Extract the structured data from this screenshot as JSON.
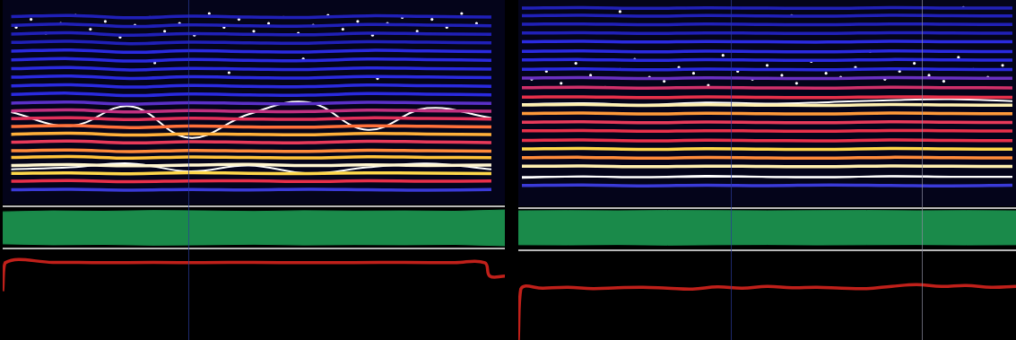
{
  "chart_data": [
    {
      "type": "line",
      "tick_labels": false,
      "grid": false,
      "xlim": [
        0,
        100
      ],
      "ylim": [
        0,
        100
      ],
      "x": [
        1,
        13,
        25,
        37,
        49,
        61,
        73,
        85,
        98
      ],
      "series": [
        {
          "color": "#3a3ad8",
          "values": [
            5.7,
            5.9,
            5.5,
            5.8,
            5.6,
            5.9,
            5.7,
            5.5,
            5.8
          ]
        },
        {
          "color": "#e8304a",
          "values": [
            10,
            10.3,
            9.8,
            10.1,
            10.2,
            9.9,
            10.2,
            10,
            10.1
          ]
        },
        {
          "color": "#ffd84a",
          "values": [
            14,
            14.2,
            13.8,
            14.3,
            14,
            13.9,
            14.2,
            14.1,
            13.9
          ]
        },
        {
          "color": "#fff6d0",
          "values": [
            18,
            18.4,
            17.8,
            18.2,
            18.5,
            17.9,
            18.3,
            18,
            18.2
          ]
        },
        {
          "color": "#ffc23a",
          "values": [
            22,
            22.5,
            21.7,
            22.3,
            22,
            21.8,
            22.4,
            22.1,
            21.9
          ]
        },
        {
          "color": "#ff8a3a",
          "values": [
            25.4,
            25.8,
            25,
            25.6,
            25.3,
            25.1,
            25.7,
            25.4,
            25.2
          ]
        },
        {
          "color": "#e83a5a",
          "values": [
            29.8,
            30.3,
            29.4,
            30,
            29.7,
            29.5,
            30.2,
            29.9,
            29.6
          ]
        },
        {
          "color": "#ffb03a",
          "values": [
            33.8,
            34.3,
            33.4,
            34,
            33.7,
            33.5,
            34.2,
            33.9,
            33.6
          ]
        },
        {
          "color": "#ff703a",
          "values": [
            37.7,
            38.2,
            37.2,
            37.9,
            37.5,
            37.4,
            38.1,
            37.8,
            37.5
          ]
        },
        {
          "color": "#e0305a",
          "values": [
            41.7,
            42.2,
            41.2,
            41.9,
            41.5,
            41.4,
            42.1,
            41.8,
            41.5
          ]
        },
        {
          "color": "#c03080",
          "values": [
            45.6,
            46.1,
            45.1,
            45.8,
            45.4,
            45.3,
            46,
            45.7,
            45.4
          ]
        },
        {
          "color": "#5a30c8",
          "values": [
            49.6,
            50.1,
            49.1,
            49.8,
            49.4,
            49.3,
            50,
            49.7,
            49.4
          ]
        },
        {
          "color": "#2a2ae0",
          "values": [
            54,
            54.6,
            53.4,
            54.2,
            53.8,
            53.6,
            54.4,
            54.1,
            53.8
          ]
        },
        {
          "color": "#2a2ae0",
          "values": [
            58.3,
            58.9,
            57.7,
            58.5,
            58.1,
            57.9,
            58.7,
            58.4,
            58.1
          ]
        },
        {
          "color": "#2a2ae0",
          "values": [
            62.7,
            63.3,
            62.1,
            62.9,
            62.5,
            62.3,
            63.1,
            62.8,
            62.5
          ]
        },
        {
          "color": "#2a2ae0",
          "values": [
            67,
            67.6,
            66.4,
            67.2,
            66.8,
            66.6,
            67.4,
            67.1,
            66.8
          ]
        },
        {
          "color": "#2a2ae0",
          "values": [
            71.5,
            72.1,
            70.9,
            71.7,
            71.3,
            71.1,
            71.9,
            71.6,
            71.3
          ]
        },
        {
          "color": "#2a2ae0",
          "values": [
            75.9,
            76.5,
            75.3,
            76.1,
            75.7,
            75.5,
            76.3,
            76,
            75.7
          ]
        },
        {
          "color": "#2020b8",
          "values": [
            80.3,
            80.9,
            79.7,
            80.5,
            80.1,
            79.9,
            80.7,
            80.4,
            80.1
          ]
        },
        {
          "color": "#2020b8",
          "values": [
            84.6,
            85.2,
            84,
            84.8,
            84.4,
            84.2,
            85,
            84.7,
            84.4
          ]
        },
        {
          "color": "#2020b8",
          "values": [
            89,
            89.6,
            88.4,
            89.2,
            88.8,
            88.6,
            89.4,
            89.1,
            88.8
          ]
        },
        {
          "color": "#2020b8",
          "values": [
            93.4,
            94,
            92.8,
            93.6,
            93.2,
            93,
            93.8,
            93.5,
            93.2
          ]
        },
        {
          "color": "#ffffff",
          "values": [
            16,
            17,
            19,
            15,
            18,
            14,
            17,
            19,
            16
          ]
        },
        {
          "color": "#ffffff",
          "values": [
            45,
            38,
            48,
            32,
            44,
            50,
            36,
            47,
            42
          ]
        },
        {
          "type": "scatter",
          "marker": "circle",
          "color": "#ffffff",
          "x": [
            2,
            5,
            8,
            11,
            14,
            17,
            20,
            23,
            26,
            29,
            32,
            35,
            38,
            41,
            44,
            47,
            50,
            53,
            56,
            59,
            62,
            65,
            68,
            71,
            74,
            77,
            80,
            83,
            86,
            89,
            92,
            95,
            30,
            45,
            60,
            75
          ],
          "values": [
            88,
            92,
            85,
            90,
            94,
            87,
            91,
            83,
            89,
            93,
            86,
            90,
            84,
            95,
            88,
            92,
            86,
            90,
            93,
            85,
            89,
            94,
            87,
            91,
            84,
            90,
            93,
            86,
            92,
            88,
            95,
            90,
            70,
            65,
            72,
            62
          ]
        }
      ]
    },
    {
      "type": "area",
      "tick_labels": false,
      "grid": false,
      "xlim": [
        0,
        100
      ],
      "ylim": [
        -1,
        1
      ],
      "x": [
        0,
        10,
        20,
        30,
        40,
        50,
        60,
        70,
        80,
        90,
        100
      ],
      "series": [
        {
          "color": "#1a8a4a",
          "values": [
            0.85,
            0.9,
            0.88,
            0.92,
            0.9,
            0.87,
            0.91,
            0.89,
            0.9,
            0.88,
            0.95
          ]
        },
        {
          "color": "#1a8a4a",
          "values": [
            -0.85,
            -0.9,
            -0.88,
            -0.92,
            -0.9,
            -0.87,
            -0.91,
            -0.89,
            -0.9,
            -0.88,
            -0.95
          ]
        }
      ]
    },
    {
      "type": "line",
      "tick_labels": false,
      "grid": false,
      "xlim": [
        0,
        100
      ],
      "ylim": [
        0,
        100
      ],
      "x": [
        0,
        0.5,
        10,
        20,
        30,
        40,
        50,
        60,
        70,
        80,
        90,
        96,
        97,
        100
      ],
      "series": [
        {
          "color": "#c0201a",
          "values": [
            55,
            87,
            87.5,
            87,
            87.3,
            87.1,
            87.4,
            87,
            87.2,
            87.3,
            87.1,
            87,
            72,
            72
          ]
        }
      ]
    },
    {
      "type": "line",
      "tick_labels": false,
      "grid": false,
      "xlim": [
        0,
        100
      ],
      "ylim": [
        0,
        100
      ],
      "x": [
        0,
        12.5,
        25,
        37.5,
        50,
        62.5,
        75,
        87.5,
        100
      ],
      "series": [
        {
          "color": "#3a3ad8",
          "values": [
            8.7,
            8.9,
            8.5,
            8.8,
            8.6,
            8.9,
            8.7,
            8.5,
            8.8
          ]
        },
        {
          "color": "#ffffff",
          "values": [
            13,
            13.2,
            12.8,
            13.1,
            13,
            12.9,
            13.2,
            13,
            13.1
          ]
        },
        {
          "color": "#fff0b0",
          "values": [
            18.3,
            18.5,
            18.1,
            18.4,
            18.2,
            18.1,
            18.5,
            18.3,
            18.2
          ]
        },
        {
          "color": "#ff8a3a",
          "values": [
            22.6,
            22.8,
            22.4,
            22.7,
            22.5,
            22.4,
            22.8,
            22.6,
            22.5
          ]
        },
        {
          "color": "#ffd84a",
          "values": [
            27,
            27.2,
            26.8,
            27.1,
            26.9,
            26.8,
            27.2,
            27,
            26.9
          ]
        },
        {
          "color": "#e8304a",
          "values": [
            31.3,
            31.5,
            31.1,
            31.4,
            31.2,
            31.1,
            31.5,
            31.3,
            31.2
          ]
        },
        {
          "color": "#e8304a",
          "values": [
            36.1,
            36.3,
            35.9,
            36.2,
            36,
            35.9,
            36.3,
            36.1,
            36
          ]
        },
        {
          "color": "#e83a5a",
          "values": [
            40.4,
            40.6,
            40.2,
            40.5,
            40.3,
            40.2,
            40.6,
            40.4,
            40.3
          ]
        },
        {
          "color": "#ff9a3a",
          "values": [
            44.8,
            45,
            44.6,
            44.9,
            44.7,
            44.6,
            45,
            44.8,
            44.7
          ]
        },
        {
          "color": "#fff0b0",
          "values": [
            49.1,
            49.3,
            48.9,
            49.2,
            49,
            48.9,
            49.3,
            49.1,
            49
          ]
        },
        {
          "color": "#e8304a",
          "values": [
            53,
            53.2,
            52.8,
            53.1,
            52.9,
            52.8,
            53.2,
            53,
            52.9
          ]
        },
        {
          "color": "#d0306a",
          "values": [
            57.8,
            58,
            57.6,
            57.9,
            57.7,
            57.6,
            58,
            57.8,
            57.7
          ]
        },
        {
          "color": "#6a30c0",
          "values": [
            62.6,
            62.8,
            62.4,
            62.7,
            62.5,
            62.4,
            62.8,
            62.6,
            62.5
          ]
        },
        {
          "color": "#2a2ae0",
          "values": [
            67,
            67.2,
            66.8,
            67.1,
            66.9,
            66.8,
            67.2,
            67,
            66.9
          ]
        },
        {
          "color": "#2a2ae0",
          "values": [
            71.7,
            71.9,
            71.5,
            71.8,
            71.6,
            71.5,
            71.9,
            71.7,
            71.6
          ]
        },
        {
          "color": "#2a2ae0",
          "values": [
            76,
            76.2,
            75.8,
            76.1,
            75.9,
            75.8,
            76.2,
            76,
            75.9
          ]
        },
        {
          "color": "#2a2ae0",
          "values": [
            80.9,
            81.1,
            80.7,
            81,
            80.8,
            80.7,
            81.1,
            80.9,
            80.8
          ]
        },
        {
          "color": "#2020b8",
          "values": [
            85.2,
            85.4,
            85,
            85.3,
            85.1,
            85,
            85.4,
            85.2,
            85.1
          ]
        },
        {
          "color": "#2020b8",
          "values": [
            89.6,
            89.8,
            89.4,
            89.7,
            89.5,
            89.4,
            89.8,
            89.6,
            89.5
          ]
        },
        {
          "color": "#2020b8",
          "values": [
            93.9,
            94.1,
            93.7,
            94,
            93.8,
            93.7,
            94.1,
            93.9,
            93.8
          ]
        },
        {
          "color": "#2020b8",
          "values": [
            97.8,
            98,
            97.6,
            97.9,
            97.7,
            97.6,
            98,
            97.8,
            97.7
          ]
        },
        {
          "color": "#ffffff",
          "values": [
            12.5,
            13.2,
            12.8,
            13.5,
            13,
            12.7,
            13.4,
            13.1,
            12.9
          ]
        },
        {
          "color": "#ffffff",
          "values": [
            49.5,
            50,
            49.2,
            50.3,
            49.8,
            50.5,
            51.5,
            52,
            51
          ]
        },
        {
          "type": "scatter",
          "marker": "circle",
          "color": "#ffffff",
          "x": [
            2,
            5,
            8,
            11,
            14,
            17,
            20,
            23,
            26,
            29,
            32,
            35,
            38,
            41,
            44,
            47,
            50,
            53,
            56,
            59,
            62,
            65,
            68,
            71,
            74,
            77,
            80,
            83,
            86,
            89,
            92,
            95,
            98,
            20,
            55,
            90
          ],
          "values": [
            62,
            66,
            60,
            70,
            64,
            58,
            67,
            72,
            63,
            61,
            68,
            65,
            59,
            74,
            66,
            62,
            69,
            64,
            60,
            71,
            65,
            63,
            68,
            76,
            62,
            66,
            70,
            64,
            61,
            73,
            67,
            63,
            69,
            96,
            94,
            98
          ]
        }
      ]
    },
    {
      "type": "area",
      "tick_labels": false,
      "grid": false,
      "xlim": [
        0,
        100
      ],
      "ylim": [
        -1,
        1
      ],
      "x": [
        0,
        10,
        20,
        30,
        40,
        50,
        60,
        70,
        80,
        90,
        100
      ],
      "series": [
        {
          "color": "#1a8a4a",
          "values": [
            0.95,
            0.96,
            0.95,
            0.97,
            0.96,
            0.95,
            0.96,
            0.97,
            0.95,
            0.96,
            0.95
          ]
        },
        {
          "color": "#1a8a4a",
          "values": [
            -0.85,
            -0.86,
            -0.84,
            -0.87,
            -0.85,
            -0.84,
            -0.86,
            -0.85,
            -0.84,
            -0.86,
            -0.85
          ]
        }
      ]
    },
    {
      "type": "line",
      "tick_labels": false,
      "grid": false,
      "xlim": [
        0,
        100
      ],
      "ylim": [
        0,
        100
      ],
      "x": [
        0,
        0.5,
        5,
        10,
        15,
        20,
        25,
        30,
        35,
        40,
        45,
        50,
        55,
        60,
        65,
        70,
        75,
        80,
        85,
        90,
        95,
        100
      ],
      "series": [
        {
          "color": "#c0201a",
          "values": [
            0,
            58,
            59,
            60,
            58.5,
            59.5,
            60,
            59,
            58,
            60.5,
            59,
            61,
            59.5,
            60,
            59,
            58.5,
            61,
            63,
            61,
            62,
            60,
            61
          ]
        }
      ]
    }
  ]
}
